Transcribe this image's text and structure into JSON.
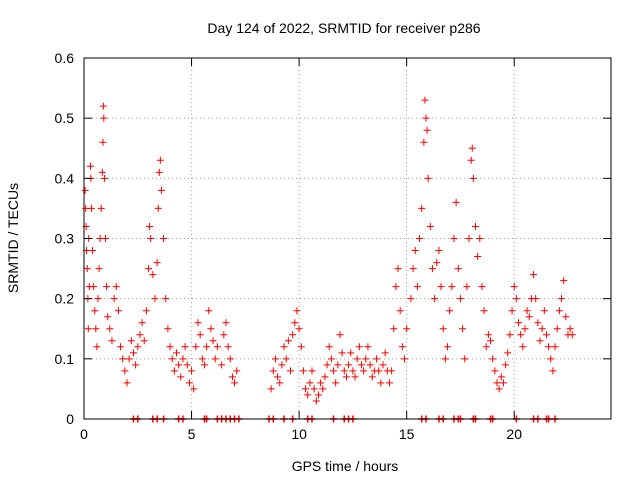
{
  "chart_data": {
    "type": "scatter",
    "title": "Day 124 of 2022, SRMTID for receiver p286",
    "xlabel": "GPS time / hours",
    "ylabel": "SRMTID / TECUs",
    "xlim": [
      0,
      24.5
    ],
    "ylim": [
      0,
      0.6
    ],
    "xticks": [
      0,
      5,
      10,
      15,
      20
    ],
    "yticks": [
      0,
      0.1,
      0.2,
      0.3,
      0.4,
      0.5,
      0.6
    ],
    "grid": true,
    "marker": "+",
    "color": "#ff0000",
    "series": [
      {
        "name": "SRMTID",
        "points": [
          [
            0.05,
            0.38
          ],
          [
            0.08,
            0.35
          ],
          [
            0.1,
            0.32
          ],
          [
            0.12,
            0.28
          ],
          [
            0.15,
            0.25
          ],
          [
            0.18,
            0.2
          ],
          [
            0.2,
            0.15
          ],
          [
            0.22,
            0.3
          ],
          [
            0.25,
            0.22
          ],
          [
            0.3,
            0.42
          ],
          [
            0.32,
            0.4
          ],
          [
            0.35,
            0.35
          ],
          [
            0.4,
            0.28
          ],
          [
            0.45,
            0.22
          ],
          [
            0.5,
            0.18
          ],
          [
            0.55,
            0.15
          ],
          [
            0.6,
            0.12
          ],
          [
            0.65,
            0.2
          ],
          [
            0.7,
            0.25
          ],
          [
            0.75,
            0.3
          ],
          [
            0.8,
            0.35
          ],
          [
            0.85,
            0.41
          ],
          [
            0.88,
            0.46
          ],
          [
            0.9,
            0.52
          ],
          [
            0.92,
            0.5
          ],
          [
            0.95,
            0.4
          ],
          [
            1.0,
            0.3
          ],
          [
            1.05,
            0.22
          ],
          [
            1.1,
            0.17
          ],
          [
            1.2,
            0.15
          ],
          [
            1.3,
            0.13
          ],
          [
            1.4,
            0.2
          ],
          [
            1.5,
            0.22
          ],
          [
            1.6,
            0.18
          ],
          [
            1.7,
            0.12
          ],
          [
            1.8,
            0.1
          ],
          [
            1.9,
            0.08
          ],
          [
            2.0,
            0.06
          ],
          [
            2.1,
            0.1
          ],
          [
            2.2,
            0.13
          ],
          [
            2.3,
            0.11
          ],
          [
            2.4,
            0.09
          ],
          [
            2.5,
            0.12
          ],
          [
            2.6,
            0.14
          ],
          [
            2.7,
            0.16
          ],
          [
            2.8,
            0.13
          ],
          [
            2.9,
            0.18
          ],
          [
            3.0,
            0.25
          ],
          [
            3.05,
            0.32
          ],
          [
            3.1,
            0.3
          ],
          [
            3.2,
            0.24
          ],
          [
            3.3,
            0.2
          ],
          [
            3.4,
            0.26
          ],
          [
            3.45,
            0.35
          ],
          [
            3.5,
            0.41
          ],
          [
            3.55,
            0.43
          ],
          [
            3.6,
            0.38
          ],
          [
            3.7,
            0.3
          ],
          [
            3.8,
            0.2
          ],
          [
            3.9,
            0.15
          ],
          [
            4.0,
            0.12
          ],
          [
            4.1,
            0.1
          ],
          [
            4.2,
            0.08
          ],
          [
            4.3,
            0.11
          ],
          [
            4.4,
            0.09
          ],
          [
            4.5,
            0.07
          ],
          [
            4.6,
            0.1
          ],
          [
            4.7,
            0.12
          ],
          [
            4.8,
            0.09
          ],
          [
            4.9,
            0.06
          ],
          [
            5.0,
            0.08
          ],
          [
            5.1,
            0.05
          ],
          [
            5.2,
            0.12
          ],
          [
            5.3,
            0.16
          ],
          [
            5.4,
            0.14
          ],
          [
            5.5,
            0.1
          ],
          [
            5.6,
            0.09
          ],
          [
            5.7,
            0.12
          ],
          [
            5.8,
            0.18
          ],
          [
            5.9,
            0.15
          ],
          [
            6.0,
            0.13
          ],
          [
            6.1,
            0.1
          ],
          [
            6.2,
            0.12
          ],
          [
            6.4,
            0.09
          ],
          [
            6.5,
            0.14
          ],
          [
            6.6,
            0.16
          ],
          [
            6.7,
            0.12
          ],
          [
            6.8,
            0.1
          ],
          [
            6.9,
            0.07
          ],
          [
            7.0,
            0.06
          ],
          [
            7.1,
            0.08
          ],
          [
            8.7,
            0.05
          ],
          [
            8.8,
            0.08
          ],
          [
            8.9,
            0.1
          ],
          [
            9.0,
            0.07
          ],
          [
            9.1,
            0.06
          ],
          [
            9.2,
            0.09
          ],
          [
            9.3,
            0.12
          ],
          [
            9.4,
            0.1
          ],
          [
            9.5,
            0.13
          ],
          [
            9.6,
            0.08
          ],
          [
            9.7,
            0.14
          ],
          [
            9.8,
            0.16
          ],
          [
            9.9,
            0.18
          ],
          [
            10.0,
            0.15
          ],
          [
            10.1,
            0.12
          ],
          [
            10.2,
            0.08
          ],
          [
            10.3,
            0.05
          ],
          [
            10.4,
            0.04
          ],
          [
            10.5,
            0.06
          ],
          [
            10.6,
            0.08
          ],
          [
            10.7,
            0.05
          ],
          [
            10.8,
            0.03
          ],
          [
            10.9,
            0.04
          ],
          [
            11.0,
            0.06
          ],
          [
            11.1,
            0.05
          ],
          [
            11.2,
            0.07
          ],
          [
            11.3,
            0.09
          ],
          [
            11.4,
            0.12
          ],
          [
            11.5,
            0.1
          ],
          [
            11.6,
            0.08
          ],
          [
            11.7,
            0.06
          ],
          [
            11.8,
            0.09
          ],
          [
            11.9,
            0.14
          ],
          [
            12.0,
            0.11
          ],
          [
            12.1,
            0.08
          ],
          [
            12.2,
            0.07
          ],
          [
            12.3,
            0.09
          ],
          [
            12.4,
            0.11
          ],
          [
            12.5,
            0.08
          ],
          [
            12.6,
            0.07
          ],
          [
            12.7,
            0.1
          ],
          [
            12.8,
            0.12
          ],
          [
            12.9,
            0.09
          ],
          [
            13.0,
            0.08
          ],
          [
            13.1,
            0.1
          ],
          [
            13.2,
            0.12
          ],
          [
            13.3,
            0.09
          ],
          [
            13.4,
            0.07
          ],
          [
            13.5,
            0.08
          ],
          [
            13.6,
            0.1
          ],
          [
            13.7,
            0.08
          ],
          [
            13.8,
            0.06
          ],
          [
            13.9,
            0.09
          ],
          [
            14.0,
            0.11
          ],
          [
            14.1,
            0.08
          ],
          [
            14.2,
            0.06
          ],
          [
            14.3,
            0.08
          ],
          [
            14.4,
            0.15
          ],
          [
            14.5,
            0.22
          ],
          [
            14.6,
            0.25
          ],
          [
            14.7,
            0.18
          ],
          [
            14.8,
            0.12
          ],
          [
            14.9,
            0.1
          ],
          [
            15.0,
            0.15
          ],
          [
            15.2,
            0.2
          ],
          [
            15.3,
            0.25
          ],
          [
            15.4,
            0.28
          ],
          [
            15.5,
            0.22
          ],
          [
            15.6,
            0.3
          ],
          [
            15.7,
            0.35
          ],
          [
            15.8,
            0.46
          ],
          [
            15.85,
            0.53
          ],
          [
            15.9,
            0.5
          ],
          [
            15.95,
            0.48
          ],
          [
            16.0,
            0.4
          ],
          [
            16.1,
            0.32
          ],
          [
            16.2,
            0.25
          ],
          [
            16.3,
            0.2
          ],
          [
            16.4,
            0.26
          ],
          [
            16.5,
            0.28
          ],
          [
            16.6,
            0.22
          ],
          [
            16.7,
            0.15
          ],
          [
            16.8,
            0.1
          ],
          [
            16.9,
            0.12
          ],
          [
            17.0,
            0.18
          ],
          [
            17.1,
            0.22
          ],
          [
            17.2,
            0.3
          ],
          [
            17.3,
            0.36
          ],
          [
            17.4,
            0.25
          ],
          [
            17.5,
            0.2
          ],
          [
            17.6,
            0.15
          ],
          [
            17.7,
            0.1
          ],
          [
            17.8,
            0.22
          ],
          [
            17.9,
            0.3
          ],
          [
            18.0,
            0.43
          ],
          [
            18.05,
            0.45
          ],
          [
            18.1,
            0.4
          ],
          [
            18.2,
            0.32
          ],
          [
            18.3,
            0.27
          ],
          [
            18.4,
            0.3
          ],
          [
            18.5,
            0.22
          ],
          [
            18.6,
            0.18
          ],
          [
            18.7,
            0.12
          ],
          [
            18.8,
            0.14
          ],
          [
            18.9,
            0.13
          ],
          [
            19.0,
            0.1
          ],
          [
            19.1,
            0.08
          ],
          [
            19.2,
            0.06
          ],
          [
            19.3,
            0.05
          ],
          [
            19.4,
            0.07
          ],
          [
            19.5,
            0.06
          ],
          [
            19.6,
            0.09
          ],
          [
            19.7,
            0.11
          ],
          [
            19.8,
            0.14
          ],
          [
            19.9,
            0.18
          ],
          [
            20.0,
            0.22
          ],
          [
            20.1,
            0.2
          ],
          [
            20.2,
            0.16
          ],
          [
            20.3,
            0.14
          ],
          [
            20.4,
            0.12
          ],
          [
            20.5,
            0.15
          ],
          [
            20.6,
            0.18
          ],
          [
            20.7,
            0.17
          ],
          [
            20.8,
            0.2
          ],
          [
            20.9,
            0.24
          ],
          [
            21.0,
            0.2
          ],
          [
            21.1,
            0.16
          ],
          [
            21.2,
            0.13
          ],
          [
            21.3,
            0.15
          ],
          [
            21.4,
            0.18
          ],
          [
            21.5,
            0.14
          ],
          [
            21.6,
            0.12
          ],
          [
            21.7,
            0.1
          ],
          [
            21.8,
            0.08
          ],
          [
            21.9,
            0.12
          ],
          [
            22.0,
            0.15
          ],
          [
            22.1,
            0.18
          ],
          [
            22.2,
            0.2
          ],
          [
            22.3,
            0.23
          ],
          [
            22.4,
            0.17
          ],
          [
            22.5,
            0.14
          ],
          [
            22.6,
            0.15
          ],
          [
            22.7,
            0.14
          ]
        ]
      }
    ],
    "baseline_marks_x": [
      2.3,
      2.5,
      3.2,
      3.4,
      3.7,
      4.4,
      4.6,
      5.6,
      5.7,
      6.2,
      6.4,
      6.6,
      6.8,
      7.0,
      7.2,
      8.6,
      8.8,
      9.3,
      9.7,
      10.4,
      10.6,
      11.6,
      12.1,
      12.3,
      12.5,
      15.7,
      15.9,
      16.5,
      16.7,
      17.2,
      17.4,
      17.5,
      18.1,
      18.2,
      18.9,
      19.0,
      20.1,
      20.9,
      21.1,
      21.5,
      21.6,
      21.9
    ]
  }
}
